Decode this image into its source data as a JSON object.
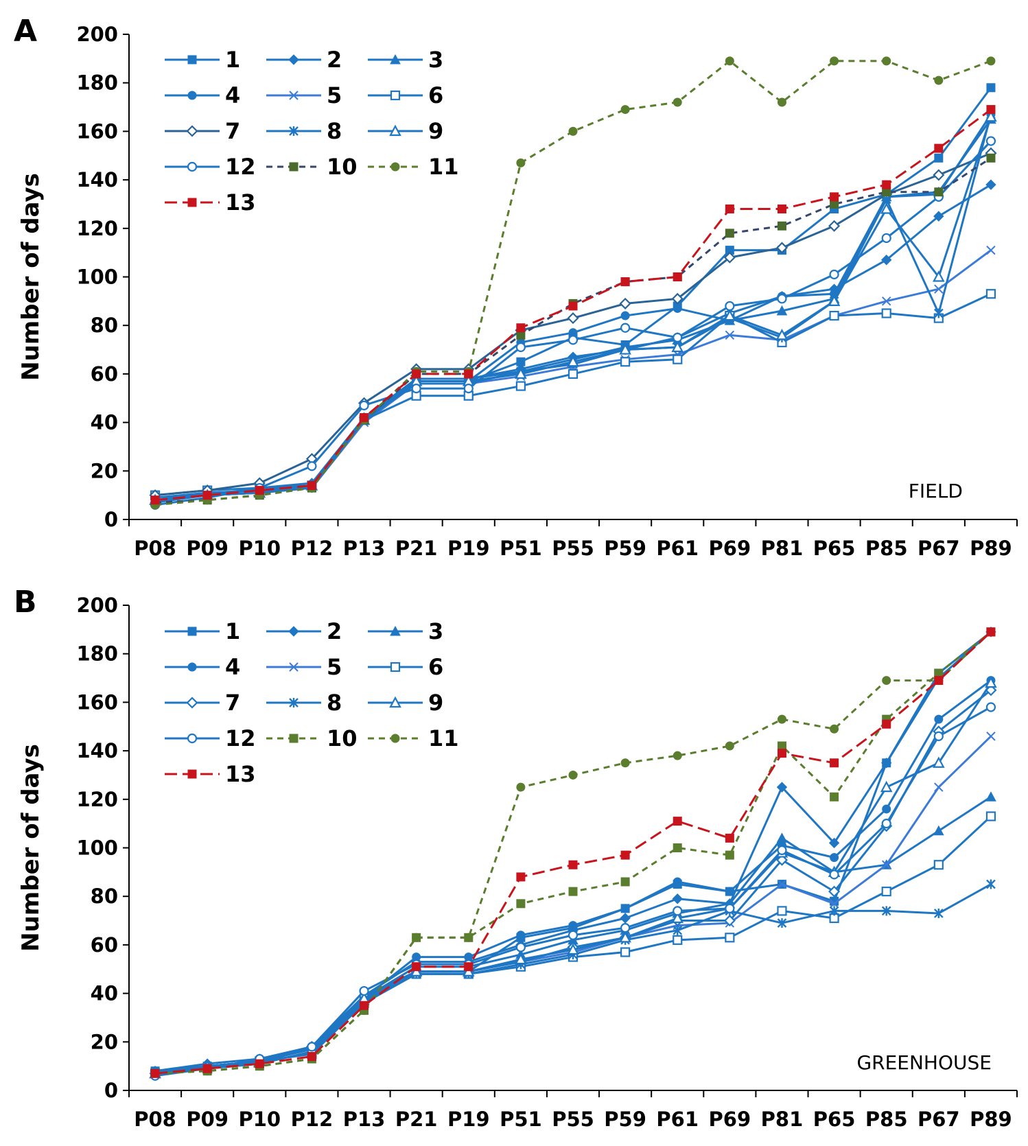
{
  "chart_data": [
    {
      "type": "line",
      "panel_label": "A",
      "annotation": "FIELD",
      "ylabel": "Number of days",
      "xlabel": "",
      "ylim": [
        0,
        200
      ],
      "yticks": [
        0,
        20,
        40,
        60,
        80,
        100,
        120,
        140,
        160,
        180,
        200
      ],
      "grid": false,
      "legend_position": "top-left",
      "categories": [
        "P08",
        "P09",
        "P10",
        "P12",
        "P13",
        "P21",
        "P19",
        "P51",
        "P55",
        "P59",
        "P61",
        "P69",
        "P81",
        "P65",
        "P85",
        "P67",
        "P89"
      ],
      "series": [
        {
          "name": "1",
          "color": "#1f77c4",
          "marker": "square-filled",
          "dash": "solid",
          "values": [
            9,
            11,
            12,
            14,
            41,
            57,
            57,
            65,
            75,
            72,
            88,
            111,
            111,
            128,
            134,
            149,
            178
          ]
        },
        {
          "name": "2",
          "color": "#1f77c4",
          "marker": "diamond-filled",
          "dash": "solid",
          "values": [
            7,
            10,
            13,
            15,
            42,
            58,
            58,
            62,
            67,
            70,
            75,
            85,
            92,
            95,
            107,
            125,
            138
          ]
        },
        {
          "name": "3",
          "color": "#1f77c4",
          "marker": "triangle-filled",
          "dash": "solid",
          "values": [
            8,
            10,
            11,
            14,
            41,
            58,
            58,
            61,
            66,
            71,
            74,
            82,
            86,
            91,
            133,
            135,
            165
          ]
        },
        {
          "name": "4",
          "color": "#1f77c4",
          "marker": "circle-filled",
          "dash": "solid",
          "values": [
            8,
            11,
            12,
            14,
            42,
            57,
            57,
            73,
            77,
            84,
            87,
            82,
            92,
            93,
            133,
            134,
            167
          ]
        },
        {
          "name": "5",
          "color": "#3d7bd8",
          "marker": "x",
          "dash": "solid",
          "values": [
            8,
            10,
            11,
            13,
            40,
            56,
            56,
            59,
            63,
            66,
            68,
            76,
            74,
            84,
            90,
            95,
            111
          ]
        },
        {
          "name": "6",
          "color": "#1f77c4",
          "marker": "square-open",
          "dash": "solid",
          "values": [
            10,
            12,
            13,
            14,
            41,
            51,
            51,
            55,
            60,
            65,
            66,
            84,
            73,
            84,
            85,
            83,
            93
          ]
        },
        {
          "name": "7",
          "color": "#2a6496",
          "marker": "diamond-open",
          "dash": "solid",
          "values": [
            10,
            12,
            15,
            25,
            48,
            62,
            62,
            78,
            83,
            89,
            91,
            108,
            112,
            121,
            134,
            142,
            151
          ]
        },
        {
          "name": "8",
          "color": "#1f77c4",
          "marker": "asterisk",
          "dash": "solid",
          "values": [
            8,
            10,
            11,
            13,
            41,
            56,
            56,
            61,
            64,
            70,
            71,
            83,
            75,
            90,
            132,
            85,
            167
          ]
        },
        {
          "name": "9",
          "color": "#1f77c4",
          "marker": "triangle-open",
          "dash": "solid",
          "values": [
            8,
            10,
            11,
            14,
            41,
            57,
            57,
            60,
            65,
            70,
            71,
            84,
            76,
            90,
            128,
            100,
            166
          ]
        },
        {
          "name": "12",
          "color": "#1f77c4",
          "marker": "circle-open",
          "dash": "solid",
          "values": [
            6,
            9,
            13,
            22,
            47,
            54,
            54,
            71,
            74,
            79,
            75,
            88,
            91,
            101,
            116,
            133,
            156
          ]
        },
        {
          "name": "10",
          "color": "#34486e",
          "marker": "square-filled",
          "dash": "dashed",
          "marker_color": "#4a6b2c",
          "values": [
            7,
            8,
            10,
            13,
            41,
            60,
            60,
            76,
            89,
            98,
            100,
            118,
            121,
            130,
            135,
            135,
            149
          ]
        },
        {
          "name": "11",
          "color": "#5a7d2e",
          "marker": "circle-filled",
          "dash": "dashed",
          "values": [
            6,
            8,
            10,
            13,
            41,
            61,
            61,
            147,
            160,
            169,
            172,
            189,
            172,
            189,
            189,
            181,
            189
          ]
        },
        {
          "name": "13",
          "color": "#c8141c",
          "marker": "square-filled",
          "dash": "longdash",
          "values": [
            8,
            10,
            12,
            14,
            42,
            60,
            60,
            79,
            88,
            98,
            100,
            128,
            128,
            133,
            138,
            153,
            169
          ]
        }
      ]
    },
    {
      "type": "line",
      "panel_label": "B",
      "annotation": "GREENHOUSE",
      "ylabel": "Number of days",
      "xlabel": "",
      "ylim": [
        0,
        200
      ],
      "yticks": [
        0,
        20,
        40,
        60,
        80,
        100,
        120,
        140,
        160,
        180,
        200
      ],
      "grid": false,
      "legend_position": "top-left",
      "categories": [
        "P08",
        "P09",
        "P10",
        "P12",
        "P13",
        "P21",
        "P19",
        "P51",
        "P55",
        "P59",
        "P61",
        "P69",
        "P81",
        "P65",
        "P85",
        "P67",
        "P89"
      ],
      "series": [
        {
          "name": "1",
          "color": "#1f77c4",
          "marker": "square-filled",
          "dash": "solid",
          "values": [
            8,
            10,
            12,
            17,
            38,
            49,
            49,
            63,
            67,
            75,
            85,
            82,
            85,
            78,
            135,
            172,
            189
          ]
        },
        {
          "name": "2",
          "color": "#1f77c4",
          "marker": "diamond-filled",
          "dash": "solid",
          "values": [
            8,
            11,
            13,
            18,
            39,
            53,
            53,
            60,
            66,
            71,
            79,
            77,
            125,
            102,
            135,
            170,
            189
          ]
        },
        {
          "name": "3",
          "color": "#1f77c4",
          "marker": "triangle-filled",
          "dash": "solid",
          "values": [
            7,
            10,
            12,
            17,
            38,
            51,
            51,
            56,
            62,
            66,
            73,
            77,
            104,
            90,
            93,
            107,
            121
          ]
        },
        {
          "name": "4",
          "color": "#1f77c4",
          "marker": "circle-filled",
          "dash": "solid",
          "values": [
            7,
            10,
            12,
            17,
            38,
            55,
            55,
            64,
            68,
            75,
            86,
            82,
            101,
            96,
            116,
            153,
            169
          ]
        },
        {
          "name": "5",
          "color": "#3d7bd8",
          "marker": "x",
          "dash": "solid",
          "values": [
            7,
            9,
            11,
            16,
            37,
            49,
            49,
            53,
            57,
            63,
            68,
            69,
            85,
            77,
            93,
            125,
            146
          ]
        },
        {
          "name": "6",
          "color": "#1f77c4",
          "marker": "square-open",
          "dash": "solid",
          "values": [
            7,
            9,
            12,
            15,
            36,
            48,
            48,
            51,
            55,
            57,
            62,
            63,
            74,
            71,
            82,
            93,
            113
          ]
        },
        {
          "name": "7",
          "color": "#1f77c4",
          "marker": "diamond-open",
          "dash": "solid",
          "values": [
            7,
            10,
            12,
            18,
            39,
            49,
            49,
            53,
            59,
            63,
            70,
            70,
            95,
            82,
            109,
            148,
            165
          ]
        },
        {
          "name": "8",
          "color": "#1f77c4",
          "marker": "asterisk",
          "dash": "solid",
          "values": [
            7,
            9,
            11,
            16,
            37,
            48,
            48,
            52,
            56,
            62,
            66,
            74,
            69,
            74,
            74,
            73,
            85
          ]
        },
        {
          "name": "9",
          "color": "#1f77c4",
          "marker": "triangle-open",
          "dash": "solid",
          "values": [
            7,
            10,
            12,
            17,
            38,
            49,
            49,
            54,
            58,
            63,
            71,
            75,
            98,
            90,
            125,
            135,
            168
          ]
        },
        {
          "name": "12",
          "color": "#1f77c4",
          "marker": "circle-open",
          "dash": "solid",
          "values": [
            6,
            9,
            13,
            18,
            41,
            52,
            52,
            59,
            64,
            67,
            74,
            75,
            99,
            89,
            110,
            146,
            158
          ]
        },
        {
          "name": "10",
          "color": "#5a7d2e",
          "marker": "square-filled",
          "dash": "dashed",
          "values": [
            7,
            8,
            10,
            13,
            33,
            63,
            63,
            77,
            82,
            86,
            100,
            97,
            142,
            121,
            153,
            172,
            189
          ]
        },
        {
          "name": "11",
          "color": "#5a7d2e",
          "marker": "circle-filled",
          "dash": "dashed",
          "values": [
            7,
            8,
            10,
            13,
            33,
            63,
            63,
            125,
            130,
            135,
            138,
            142,
            153,
            149,
            169,
            169,
            189
          ]
        },
        {
          "name": "13",
          "color": "#c8141c",
          "marker": "square-filled",
          "dash": "longdash",
          "values": [
            7,
            9,
            11,
            14,
            35,
            51,
            51,
            88,
            93,
            97,
            111,
            104,
            139,
            135,
            151,
            169,
            189
          ]
        }
      ]
    }
  ]
}
